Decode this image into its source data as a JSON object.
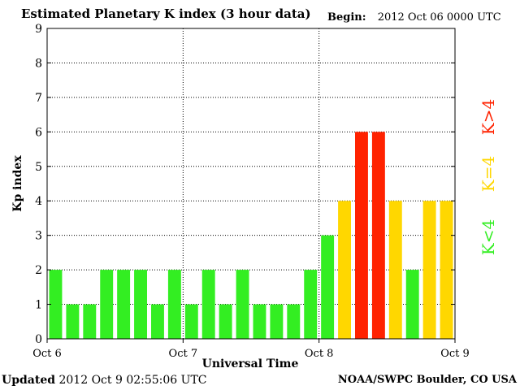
{
  "header": {
    "title": "Estimated Planetary K index (3 hour data)",
    "begin_label": "Begin:",
    "begin_value": "2012 Oct 06 0000 UTC"
  },
  "footer": {
    "updated_label": "Updated",
    "updated_value": "2012 Oct  9 02:55:06 UTC",
    "credit": "NOAA/SWPC Boulder, CO USA"
  },
  "legend": [
    {
      "label": "K<4",
      "color": "#33ee22"
    },
    {
      "label": "K=4",
      "color": "#ffd700"
    },
    {
      "label": "K>4",
      "color": "#ff2200"
    }
  ],
  "chart_data": {
    "type": "bar",
    "title": "Estimated Planetary K index (3 hour data)",
    "xlabel": "Universal Time",
    "ylabel": "Kp index",
    "ylim": [
      0,
      9
    ],
    "yticks": [
      0,
      1,
      2,
      3,
      4,
      5,
      6,
      7,
      8,
      9
    ],
    "xticks": [
      "Oct 6",
      "Oct 7",
      "Oct 8",
      "Oct 9"
    ],
    "grid": true,
    "interval_hours": 3,
    "values": [
      2,
      1,
      1,
      2,
      2,
      2,
      1,
      2,
      1,
      2,
      1,
      2,
      1,
      1,
      1,
      2,
      3,
      4,
      6,
      6,
      4,
      2,
      4,
      4
    ],
    "colors": {
      "below4": "#33ee22",
      "equal4": "#ffd700",
      "above4": "#ff2200"
    }
  }
}
